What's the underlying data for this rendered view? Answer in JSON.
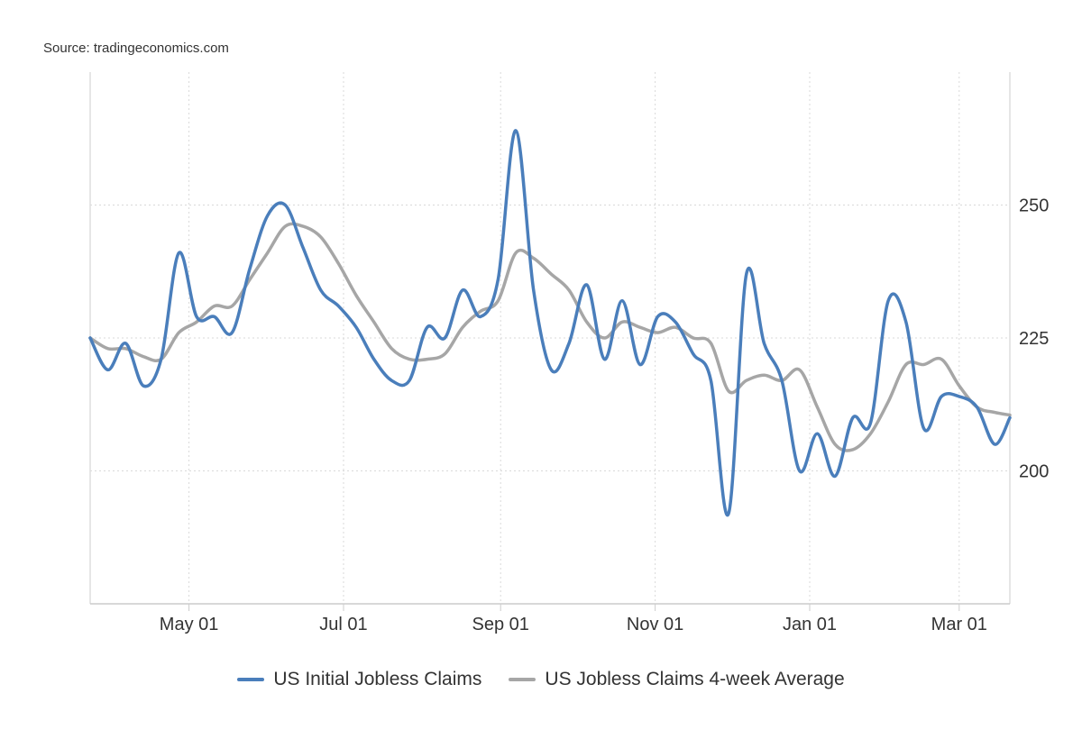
{
  "source": "Source: tradingeconomics.com",
  "chart_data": {
    "type": "line",
    "title": "",
    "xlabel": "",
    "ylabel": "",
    "x_start": "2024-03-23",
    "x_interval_days": 7,
    "xlim": [
      "2024-03-23",
      "2025-03-21"
    ],
    "ylim": [
      175,
      275
    ],
    "yticks": [
      200,
      225,
      250
    ],
    "ytick_labels": [
      "200",
      "225",
      "250"
    ],
    "xticks": [
      "2024-05-01",
      "2024-07-01",
      "2024-09-01",
      "2024-11-01",
      "2025-01-01",
      "2025-03-01"
    ],
    "xtick_labels": [
      "May 01",
      "Jul 01",
      "Sep 01",
      "Nov 01",
      "Jan 01",
      "Mar 01"
    ],
    "grid": true,
    "legend_position": "bottom-center",
    "series": [
      {
        "name": "US Initial Jobless Claims",
        "color": "#4a7ebb",
        "values": [
          225,
          219,
          224,
          216,
          221,
          241,
          229,
          229,
          226,
          238,
          248,
          250,
          242,
          234,
          231,
          227,
          221,
          217,
          217,
          227,
          225,
          234,
          229,
          236,
          264,
          234,
          219,
          224,
          235,
          221,
          232,
          220,
          229,
          228,
          222,
          217,
          192,
          237,
          224,
          217,
          200,
          207,
          199,
          210,
          209,
          232,
          228,
          208,
          214,
          214,
          212,
          205,
          210
        ]
      },
      {
        "name": "US Jobless Claims 4-week Average",
        "color": "#a6a6a6",
        "values": [
          225,
          223,
          223,
          221.5,
          221,
          226,
          228,
          231,
          231,
          236,
          241,
          246,
          246,
          244,
          239,
          233,
          228,
          223,
          221,
          221,
          222,
          227,
          230,
          232,
          241,
          240,
          237,
          234,
          228,
          225,
          228,
          227,
          226,
          227,
          225,
          224,
          215,
          217,
          218,
          217,
          219,
          212,
          205,
          204,
          207,
          213,
          220,
          220,
          221,
          216,
          212,
          211,
          210.5
        ]
      }
    ]
  }
}
